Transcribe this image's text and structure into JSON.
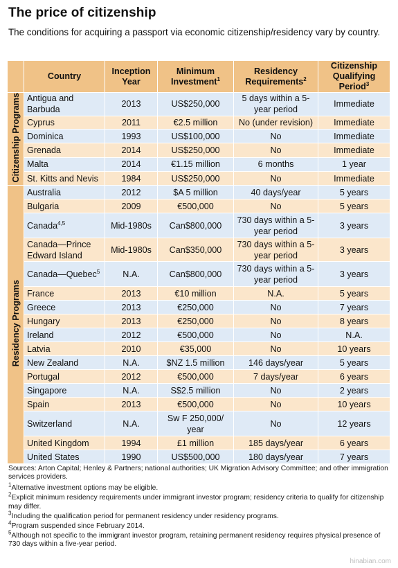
{
  "title": "The price of citizenship",
  "subtitle": "The conditions for acquiring a passport via economic citizenship/residency vary by country.",
  "headers": {
    "country": "Country",
    "inception_1": "Inception",
    "inception_2": "Year",
    "investment_1": "Minimum",
    "investment_2": "Investment",
    "investment_sup": "1",
    "residency_1": "Residency",
    "residency_2": "Requirements",
    "residency_sup": "2",
    "qualifying_1": "Citizenship",
    "qualifying_2": "Qualifying Period",
    "qualifying_sup": "3"
  },
  "groups": {
    "citizenship": "Citizenship Programs",
    "residency": "Residency Programs"
  },
  "citizenship_rows": [
    {
      "country": "Antigua and Barbuda",
      "year": "2013",
      "investment": "US$250,000",
      "residency": "5 days within a 5-year period",
      "period": "Immediate"
    },
    {
      "country": "Cyprus",
      "year": "2011",
      "investment": "€2.5 million",
      "residency": "No (under revision)",
      "period": "Immediate"
    },
    {
      "country": "Dominica",
      "year": "1993",
      "investment": "US$100,000",
      "residency": "No",
      "period": "Immediate"
    },
    {
      "country": "Grenada",
      "year": "2014",
      "investment": "US$250,000",
      "residency": "No",
      "period": "Immediate"
    },
    {
      "country": "Malta",
      "year": "2014",
      "investment": "€1.15 million",
      "residency": "6 months",
      "period": "1 year"
    },
    {
      "country": "St. Kitts and Nevis",
      "year": "1984",
      "investment": "US$250,000",
      "residency": "No",
      "period": "Immediate"
    }
  ],
  "residency_rows": [
    {
      "country": "Australia",
      "year": "2012",
      "investment": "$A 5 million",
      "residency": "40 days/year",
      "period": "5 years"
    },
    {
      "country": "Bulgaria",
      "year": "2009",
      "investment": "€500,000",
      "residency": "No",
      "period": "5 years"
    },
    {
      "country": "Canada",
      "country_sup": "4,5",
      "year": "Mid-1980s",
      "investment": "Can$800,000",
      "residency": "730 days within a 5-year period",
      "period": "3 years"
    },
    {
      "country": "Canada—Prince Edward Island",
      "year": "Mid-1980s",
      "investment": "Can$350,000",
      "residency": "730 days within a 5-year period",
      "period": "3 years"
    },
    {
      "country": "Canada—Quebec",
      "country_sup": "5",
      "year": "N.A.",
      "investment": "Can$800,000",
      "residency": "730 days within a 5-year period",
      "period": "3 years"
    },
    {
      "country": "France",
      "year": "2013",
      "investment": "€10 million",
      "residency": "N.A.",
      "period": "5 years"
    },
    {
      "country": "Greece",
      "year": "2013",
      "investment": "€250,000",
      "residency": "No",
      "period": "7 years"
    },
    {
      "country": "Hungary",
      "year": "2013",
      "investment": "€250,000",
      "residency": "No",
      "period": "8 years"
    },
    {
      "country": "Ireland",
      "year": "2012",
      "investment": "€500,000",
      "residency": "No",
      "period": "N.A."
    },
    {
      "country": "Latvia",
      "year": "2010",
      "investment": "€35,000",
      "residency": "No",
      "period": "10 years"
    },
    {
      "country": "New Zealand",
      "year": "N.A.",
      "investment": "$NZ 1.5 million",
      "residency": "146 days/year",
      "period": "5 years"
    },
    {
      "country": "Portugal",
      "year": "2012",
      "investment": "€500,000",
      "residency": "7 days/year",
      "period": "6 years"
    },
    {
      "country": "Singapore",
      "year": "N.A.",
      "investment": "S$2.5 million",
      "residency": "No",
      "period": "2 years"
    },
    {
      "country": "Spain",
      "year": "2013",
      "investment": "€500,000",
      "residency": "No",
      "period": "10 years"
    },
    {
      "country": "Switzerland",
      "year": "N.A.",
      "investment": "Sw F 250,000/ year",
      "residency": "No",
      "period": "12 years"
    },
    {
      "country": "United Kingdom",
      "year": "1994",
      "investment": "£1 million",
      "residency": "185 days/year",
      "period": "6 years"
    },
    {
      "country": "United States",
      "year": "1990",
      "investment": "US$500,000",
      "residency": "180 days/year",
      "period": "7 years"
    }
  ],
  "notes": {
    "sources": "Sources: Arton Capital; Henley & Partners; national authorities; UK Migration Advisory Committee; and other immigration services providers.",
    "items": [
      {
        "mark": "1",
        "text": "Alternative investment options may be eligible."
      },
      {
        "mark": "2",
        "text": "Explicit minimum residency requirements under immigrant investor program; residency criteria to qualify for citizenship may differ."
      },
      {
        "mark": "3",
        "text": "Including the qualification period for permanent residency under residency programs."
      },
      {
        "mark": "4",
        "text": "Program suspended since February 2014."
      },
      {
        "mark": "5",
        "text": "Although not specific to the immigrant investor program, retaining permanent residency requires physical presence of 730 days within a five-year period."
      }
    ]
  },
  "watermark": "hinabian.com",
  "colors": {
    "header_bg": "#f0c287",
    "row_blue": "#dfeaf6",
    "row_orange": "#fbe6cb"
  }
}
